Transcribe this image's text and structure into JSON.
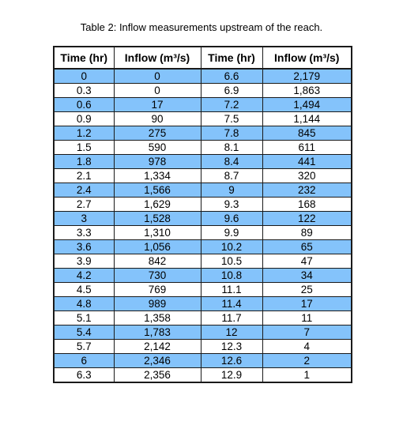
{
  "caption": "Table 2: Inflow measurements upstream of the reach.",
  "table": {
    "headers": [
      "Time (hr)",
      "Inflow (m³/s)",
      "Time (hr)",
      "Inflow (m³/s)"
    ],
    "rows": [
      [
        "0",
        "0",
        "6.6",
        "2,179"
      ],
      [
        "0.3",
        "0",
        "6.9",
        "1,863"
      ],
      [
        "0.6",
        "17",
        "7.2",
        "1,494"
      ],
      [
        "0.9",
        "90",
        "7.5",
        "1,144"
      ],
      [
        "1.2",
        "275",
        "7.8",
        "845"
      ],
      [
        "1.5",
        "590",
        "8.1",
        "611"
      ],
      [
        "1.8",
        "978",
        "8.4",
        "441"
      ],
      [
        "2.1",
        "1,334",
        "8.7",
        "320"
      ],
      [
        "2.4",
        "1,566",
        "9",
        "232"
      ],
      [
        "2.7",
        "1,629",
        "9.3",
        "168"
      ],
      [
        "3",
        "1,528",
        "9.6",
        "122"
      ],
      [
        "3.3",
        "1,310",
        "9.9",
        "89"
      ],
      [
        "3.6",
        "1,056",
        "10.2",
        "65"
      ],
      [
        "3.9",
        "842",
        "10.5",
        "47"
      ],
      [
        "4.2",
        "730",
        "10.8",
        "34"
      ],
      [
        "4.5",
        "769",
        "11.1",
        "25"
      ],
      [
        "4.8",
        "989",
        "11.4",
        "17"
      ],
      [
        "5.1",
        "1,358",
        "11.7",
        "11"
      ],
      [
        "5.4",
        "1,783",
        "12",
        "7"
      ],
      [
        "5.7",
        "2,142",
        "12.3",
        "4"
      ],
      [
        "6",
        "2,346",
        "12.6",
        "2"
      ],
      [
        "6.3",
        "2,356",
        "12.9",
        "1"
      ]
    ]
  },
  "colors": {
    "stripe": "#84c3fb",
    "background": "#ffffff",
    "border": "#1a1a1a"
  }
}
